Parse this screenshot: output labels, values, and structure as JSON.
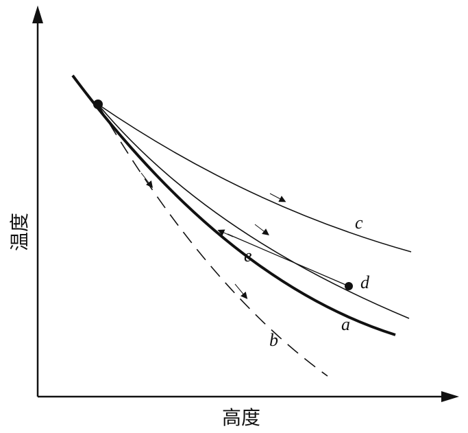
{
  "axes": {
    "x_label": "高度",
    "y_label": "温度"
  },
  "curves": [
    {
      "id": "a",
      "label": "a",
      "style": "thick-solid"
    },
    {
      "id": "b",
      "label": "b",
      "style": "dashed"
    },
    {
      "id": "c",
      "label": "c",
      "style": "thin-solid"
    },
    {
      "id": "d",
      "label": "d",
      "style": "thin-solid"
    },
    {
      "id": "e",
      "label": "e",
      "style": "thin-solid"
    }
  ],
  "colors": {
    "ink": "#111111",
    "background": "#ffffff"
  }
}
